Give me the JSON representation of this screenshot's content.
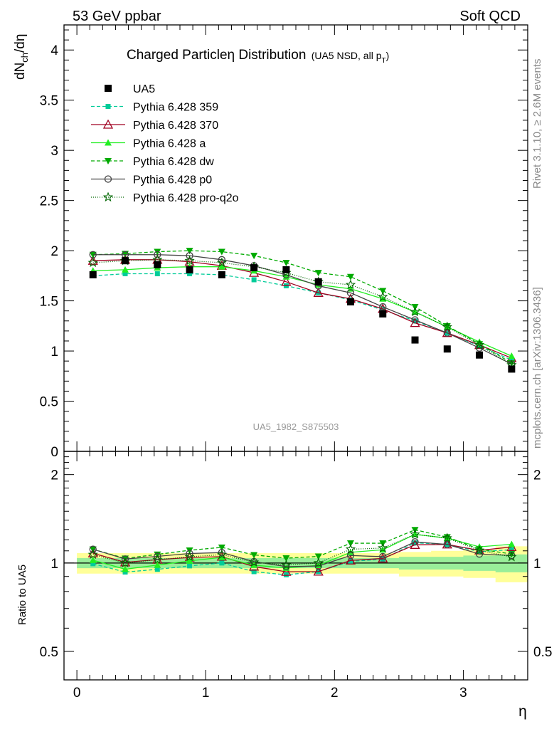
{
  "header": {
    "left": "53 GeV ppbar",
    "right": "Soft QCD"
  },
  "side": {
    "rivet": "Rivet 3.1.10, ≥ 2.6M events",
    "mcplots": "mcplots.cern.ch [arXiv:1306.3436]"
  },
  "colors": {
    "band_outer": "#ffff99",
    "band_inner": "#99ee99"
  },
  "chart_data": [
    {
      "type": "line",
      "title": "Charged Particleη Distribution",
      "subtitle": "(UA5 NSD, all p",
      "subtitle_sub": "T",
      "subtitle_close": ")",
      "watermark": "UA5_1982_S875503",
      "ylabel_main": "dN",
      "ylabel_sub": "ch",
      "ylabel_tail": "/dη",
      "ylim": [
        0,
        4.25
      ],
      "xlim": [
        -0.1,
        3.5
      ],
      "yticks": [
        0,
        0.5,
        1,
        1.5,
        2,
        2.5,
        3,
        3.5,
        4
      ],
      "ytick_labels": [
        "0",
        "0.5",
        "1",
        "1.5",
        "2",
        "2.5",
        "3",
        "3.5",
        "4"
      ],
      "x": [
        0.125,
        0.375,
        0.625,
        0.875,
        1.125,
        1.375,
        1.625,
        1.875,
        2.125,
        2.375,
        2.625,
        2.875,
        3.125,
        3.375
      ],
      "data": {
        "name": "UA5",
        "values": [
          1.76,
          1.9,
          1.86,
          1.81,
          1.76,
          1.83,
          1.81,
          1.69,
          1.49,
          1.37,
          1.11,
          1.02,
          0.96,
          0.82
        ]
      },
      "series": [
        {
          "name": "Pythia 6.428 359",
          "color": "#00cc99",
          "dash": "5,3",
          "marker": "square",
          "values": [
            1.75,
            1.77,
            1.77,
            1.77,
            1.76,
            1.71,
            1.65,
            1.58,
            1.51,
            1.41,
            1.3,
            1.18,
            1.05,
            0.91
          ]
        },
        {
          "name": "Pythia 6.428 370",
          "color": "#a00020",
          "dash": "",
          "marker": "triangle-open",
          "values": [
            1.9,
            1.91,
            1.91,
            1.89,
            1.85,
            1.78,
            1.69,
            1.58,
            1.52,
            1.42,
            1.28,
            1.18,
            1.06,
            0.93
          ]
        },
        {
          "name": "Pythia 6.428 a",
          "color": "#22ee22",
          "dash": "",
          "marker": "triangle",
          "values": [
            1.8,
            1.81,
            1.83,
            1.84,
            1.84,
            1.8,
            1.74,
            1.66,
            1.62,
            1.52,
            1.39,
            1.24,
            1.09,
            0.95
          ]
        },
        {
          "name": "Pythia 6.428 dw",
          "color": "#00aa00",
          "dash": "5,3",
          "marker": "triangle-down",
          "values": [
            1.96,
            1.97,
            1.99,
            2.0,
            1.99,
            1.95,
            1.88,
            1.78,
            1.74,
            1.6,
            1.44,
            1.25,
            1.07,
            0.88
          ]
        },
        {
          "name": "Pythia 6.428 p0",
          "color": "#444444",
          "dash": "",
          "marker": "circle-open",
          "values": [
            1.96,
            1.96,
            1.96,
            1.95,
            1.91,
            1.85,
            1.76,
            1.65,
            1.58,
            1.44,
            1.31,
            1.18,
            1.03,
            0.87
          ]
        },
        {
          "name": "Pythia 6.428 pro-q2o",
          "color": "#006600",
          "dash": "1,2",
          "marker": "star-open",
          "values": [
            1.88,
            1.9,
            1.91,
            1.9,
            1.88,
            1.84,
            1.78,
            1.69,
            1.66,
            1.54,
            1.39,
            1.24,
            1.06,
            0.86
          ]
        }
      ]
    },
    {
      "type": "line",
      "title": "",
      "ylabel": "Ratio to UA5",
      "xlabel": "η",
      "log_y": true,
      "ylim": [
        0.4,
        2.4
      ],
      "xlim": [
        -0.1,
        3.5
      ],
      "yticks": [
        0.5,
        1,
        2
      ],
      "ytick_labels": [
        "0.5",
        "1",
        "2"
      ],
      "xticks": [
        0,
        1,
        2,
        3
      ],
      "xtick_labels": [
        "0",
        "1",
        "2",
        "3"
      ],
      "band_outer_lo": [
        0.92,
        0.92,
        0.92,
        0.92,
        0.92,
        0.92,
        0.92,
        0.92,
        0.92,
        0.92,
        0.9,
        0.9,
        0.89,
        0.86
      ],
      "band_outer_hi": [
        1.08,
        1.08,
        1.08,
        1.08,
        1.08,
        1.08,
        1.08,
        1.08,
        1.08,
        1.08,
        1.09,
        1.1,
        1.11,
        1.14
      ],
      "band_inner_lo": [
        0.96,
        0.96,
        0.96,
        0.96,
        0.96,
        0.96,
        0.96,
        0.96,
        0.96,
        0.96,
        0.95,
        0.95,
        0.94,
        0.93
      ],
      "band_inner_hi": [
        1.04,
        1.04,
        1.04,
        1.04,
        1.04,
        1.04,
        1.04,
        1.04,
        1.04,
        1.04,
        1.05,
        1.05,
        1.06,
        1.07
      ]
    }
  ]
}
